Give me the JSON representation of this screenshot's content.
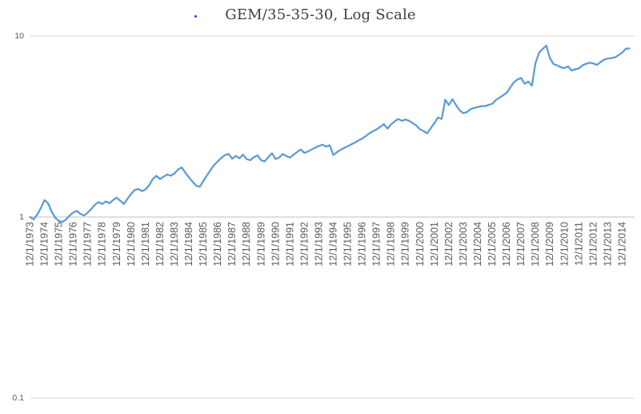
{
  "chart": {
    "title": "GEM/35-35-30, Log Scale",
    "title_dot": "."
  },
  "chart_data": {
    "type": "line",
    "title": "GEM/35-35-30, Log Scale",
    "subtitle": "",
    "xlabel": "",
    "ylabel": "",
    "y_scale": "log",
    "ylim": [
      0.1,
      10
    ],
    "y_ticks": [
      10,
      1,
      0.1
    ],
    "y_tick_labels": [
      "10",
      "1",
      "0.1"
    ],
    "grid": "horizontal-decades",
    "legend": "none",
    "axis_cross_value": 1,
    "line_color": "#5B9BD5",
    "gridline_color": "#D9D9D9",
    "axis_line_color": "#BFBFBF",
    "tick_label_color": "#595959",
    "title_color": "#404040",
    "x_start_label": "12/1/1973",
    "x_points_per_year": 4,
    "x_tick_every_years": 1,
    "x_tick_labels": [
      "12/1/1973",
      "12/1/1974",
      "12/1/1975",
      "12/1/1976",
      "12/1/1977",
      "12/1/1978",
      "12/1/1979",
      "12/1/1980",
      "12/1/1981",
      "12/1/1982",
      "12/1/1983",
      "12/1/1984",
      "12/1/1985",
      "12/1/1986",
      "12/1/1987",
      "12/1/1988",
      "12/1/1989",
      "12/1/1990",
      "12/1/1991",
      "12/1/1992",
      "12/1/1993",
      "12/1/1994",
      "12/1/1995",
      "12/1/1996",
      "12/1/1997",
      "12/1/1998",
      "12/1/1999",
      "12/1/2000",
      "12/1/2001",
      "12/1/2002",
      "12/1/2003",
      "12/1/2004",
      "12/1/2005",
      "12/1/2006",
      "12/1/2007",
      "12/1/2008",
      "12/1/2009",
      "12/1/2010",
      "12/1/2011",
      "12/1/2012",
      "12/1/2013",
      "12/1/2014"
    ],
    "values": [
      1.0,
      0.97,
      1.03,
      1.12,
      1.24,
      1.19,
      1.07,
      0.99,
      0.95,
      0.94,
      0.97,
      1.02,
      1.06,
      1.08,
      1.04,
      1.02,
      1.06,
      1.11,
      1.17,
      1.21,
      1.18,
      1.22,
      1.19,
      1.24,
      1.28,
      1.23,
      1.18,
      1.26,
      1.34,
      1.41,
      1.43,
      1.39,
      1.42,
      1.5,
      1.62,
      1.69,
      1.62,
      1.67,
      1.72,
      1.69,
      1.74,
      1.83,
      1.88,
      1.76,
      1.66,
      1.57,
      1.49,
      1.47,
      1.58,
      1.7,
      1.82,
      1.94,
      2.03,
      2.12,
      2.2,
      2.23,
      2.1,
      2.18,
      2.11,
      2.21,
      2.09,
      2.06,
      2.14,
      2.19,
      2.06,
      2.03,
      2.14,
      2.25,
      2.09,
      2.13,
      2.23,
      2.17,
      2.13,
      2.21,
      2.29,
      2.36,
      2.26,
      2.3,
      2.36,
      2.42,
      2.47,
      2.51,
      2.45,
      2.49,
      2.2,
      2.28,
      2.35,
      2.41,
      2.46,
      2.52,
      2.58,
      2.65,
      2.71,
      2.8,
      2.9,
      2.98,
      3.05,
      3.15,
      3.26,
      3.08,
      3.25,
      3.38,
      3.48,
      3.4,
      3.46,
      3.4,
      3.3,
      3.2,
      3.05,
      2.98,
      2.9,
      3.1,
      3.3,
      3.55,
      3.48,
      4.45,
      4.15,
      4.48,
      4.15,
      3.88,
      3.75,
      3.8,
      3.95,
      4.0,
      4.05,
      4.1,
      4.1,
      4.16,
      4.22,
      4.42,
      4.56,
      4.7,
      4.85,
      5.2,
      5.55,
      5.75,
      5.87,
      5.45,
      5.6,
      5.32,
      7.1,
      8.1,
      8.5,
      8.85,
      7.55,
      7.0,
      6.88,
      6.72,
      6.65,
      6.8,
      6.45,
      6.55,
      6.62,
      6.88,
      7.02,
      7.12,
      7.05,
      6.92,
      7.18,
      7.4,
      7.5,
      7.56,
      7.62,
      7.85,
      8.1,
      8.5,
      8.55
    ]
  }
}
